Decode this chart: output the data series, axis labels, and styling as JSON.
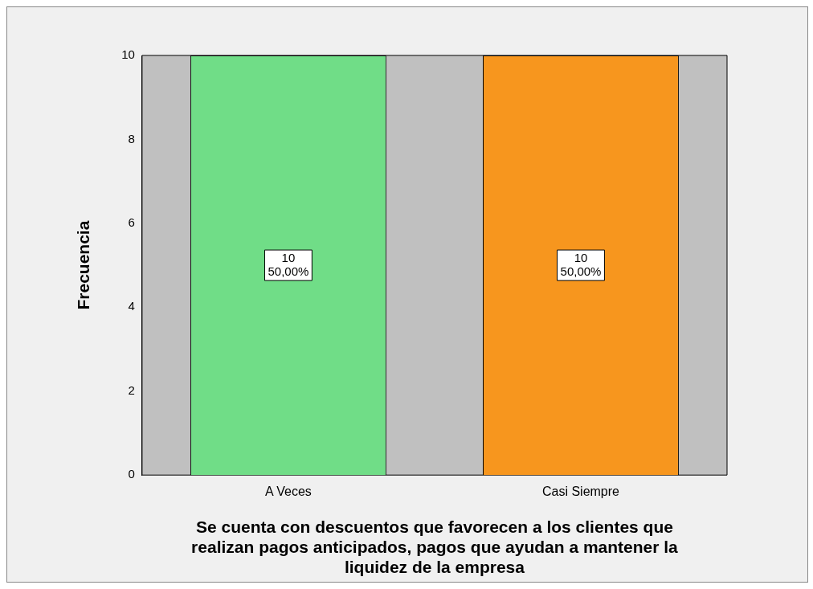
{
  "chart_data": {
    "type": "bar",
    "xlabel": "Se cuenta con descuentos que favorecen a los clientes que realizan pagos anticipados, pagos que ayudan a mantener la liquidez de la empresa",
    "ylabel": "Frecuencia",
    "categories": [
      "A Veces",
      "Casi Siempre"
    ],
    "values": [
      10,
      10
    ],
    "colors": [
      "#70dd87",
      "#f7961e"
    ],
    "value_labels": [
      "10\n50,00%",
      "10\n50,00%"
    ],
    "ylim": [
      0,
      10
    ],
    "yticks": [
      0,
      2,
      4,
      6,
      8,
      10
    ],
    "grid": false,
    "legend": false
  }
}
